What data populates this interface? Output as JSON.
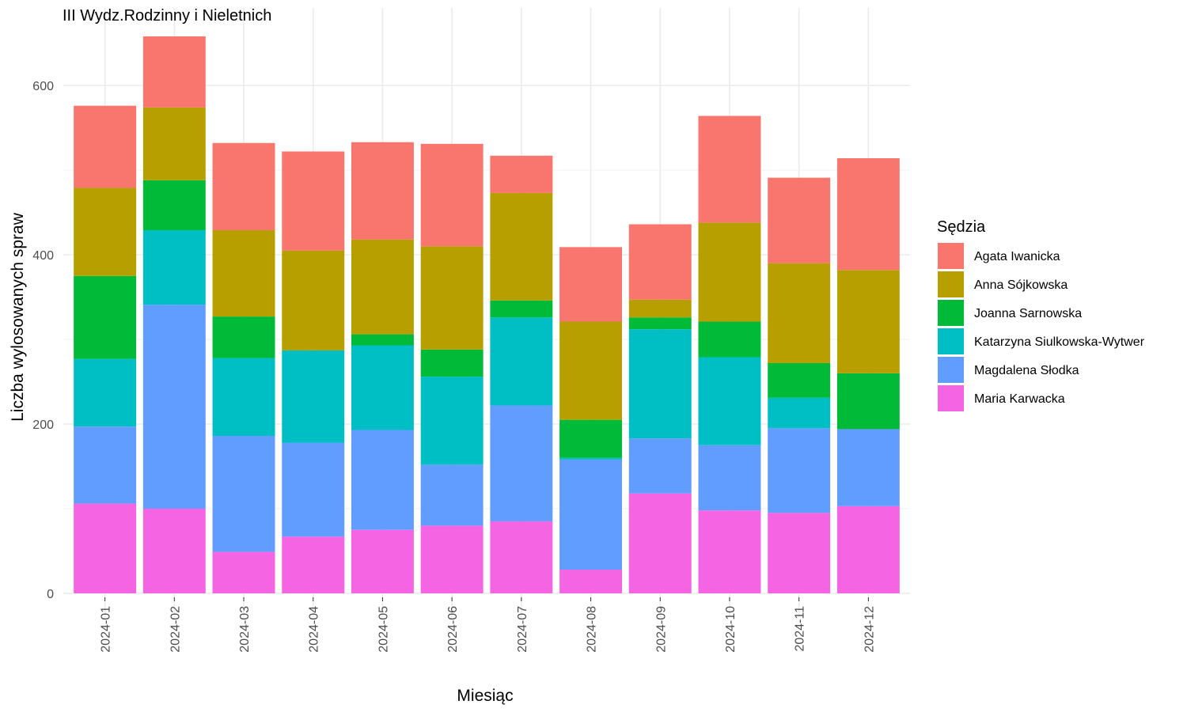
{
  "chart_data": {
    "type": "bar",
    "stacked": true,
    "title": "III Wydz.Rodzinny i Nieletnich",
    "xlabel": "Miesiąc",
    "ylabel": "Liczba wylosowanych spraw",
    "ylim": [
      0,
      660
    ],
    "yticks": [
      0,
      200,
      400,
      600
    ],
    "grid": true,
    "legend_title": "Sędzia",
    "legend_position": "right",
    "categories": [
      "2024-01",
      "2024-02",
      "2024-03",
      "2024-04",
      "2024-05",
      "2024-06",
      "2024-07",
      "2024-08",
      "2024-09",
      "2024-10",
      "2024-11",
      "2024-12"
    ],
    "series": [
      {
        "name": "Maria Karwacka",
        "color": "#F564E3",
        "values": [
          106,
          100,
          49,
          67,
          75,
          80,
          85,
          28,
          118,
          98,
          95,
          103
        ]
      },
      {
        "name": "Magdalena Słodka",
        "color": "#619CFF",
        "values": [
          91,
          241,
          137,
          111,
          118,
          72,
          137,
          130,
          65,
          77,
          100,
          91
        ]
      },
      {
        "name": "Katarzyna Siulkowska-Wytwer",
        "color": "#00BFC4",
        "values": [
          80,
          88,
          92,
          109,
          100,
          104,
          104,
          2,
          129,
          104,
          36,
          0
        ]
      },
      {
        "name": "Joanna Sarnowska",
        "color": "#00BA38",
        "values": [
          98,
          59,
          49,
          0,
          13,
          32,
          20,
          45,
          14,
          42,
          41,
          66
        ]
      },
      {
        "name": "Anna Sójkowska",
        "color": "#B79F00",
        "values": [
          104,
          86,
          102,
          118,
          112,
          122,
          127,
          116,
          21,
          117,
          118,
          122
        ]
      },
      {
        "name": "Agata Iwanicka",
        "color": "#F8766D",
        "values": [
          97,
          84,
          103,
          117,
          115,
          121,
          44,
          88,
          89,
          126,
          101,
          132
        ]
      }
    ]
  }
}
